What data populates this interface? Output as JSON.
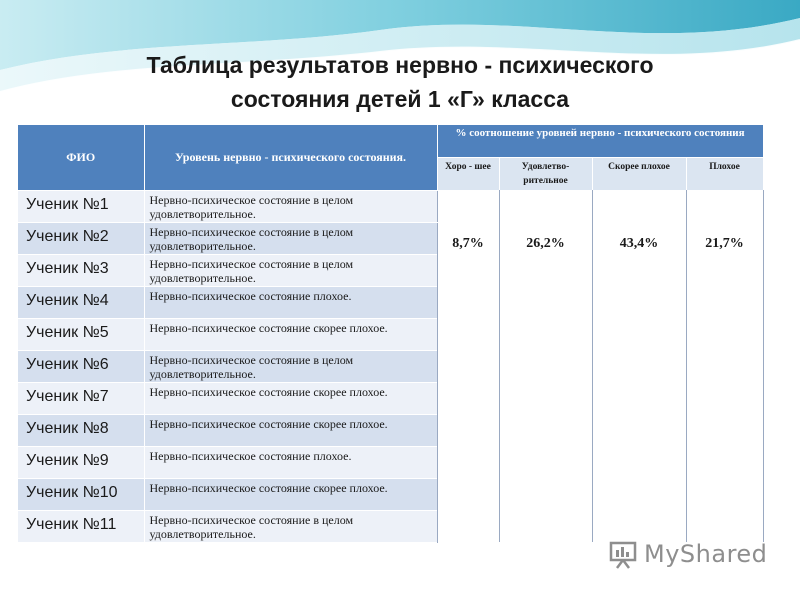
{
  "title": {
    "line1": "Таблица результатов нервно - психического",
    "line2": "состояния детей 1 «Г» класса"
  },
  "table": {
    "headers": {
      "fio": "ФИО",
      "level": "Уровень нервно - психического состояния.",
      "percent": "% соотношение уровней нервно - психического состояния",
      "sub": [
        "Хоро - шее",
        "Удовлетво- рительное",
        "Скорее плохое",
        "Плохое"
      ]
    },
    "percentages": [
      "8,7%",
      "26,2%",
      "43,4%",
      "21,7%"
    ],
    "rows": [
      {
        "name": "Ученик №1",
        "state": "Нервно-психическое состояние в целом удовлетворительное."
      },
      {
        "name": "Ученик №2",
        "state": "Нервно-психическое состояние в целом удовлетворительное."
      },
      {
        "name": "Ученик №3",
        "state": "Нервно-психическое состояние в целом удовлетворительное."
      },
      {
        "name": "Ученик №4",
        "state": "Нервно-психическое состояние плохое."
      },
      {
        "name": "Ученик №5",
        "state": "Нервно-психическое состояние скорее плохое."
      },
      {
        "name": "Ученик №6",
        "state": "Нервно-психическое состояние в целом удовлетворительное."
      },
      {
        "name": "Ученик №7",
        "state": "Нервно-психическое состояние скорее плохое."
      },
      {
        "name": "Ученик №8",
        "state": "Нервно-психическое состояние скорее плохое."
      },
      {
        "name": "Ученик №9",
        "state": "Нервно-психическое состояние плохое."
      },
      {
        "name": "Ученик №10",
        "state": "Нервно-психическое состояние скорее плохое."
      },
      {
        "name": "Ученик №11",
        "state": "Нервно-психическое состояние в целом удовлетворительное."
      }
    ]
  },
  "watermark": {
    "text": "MyShared",
    "icon": "presentation-board-icon"
  },
  "colors": {
    "header": "#4f81bd",
    "subheader": "#dbe5f1",
    "row_dark": "#d5dfee",
    "row_light": "#edf1f8",
    "wave": "#8fd3e0"
  }
}
